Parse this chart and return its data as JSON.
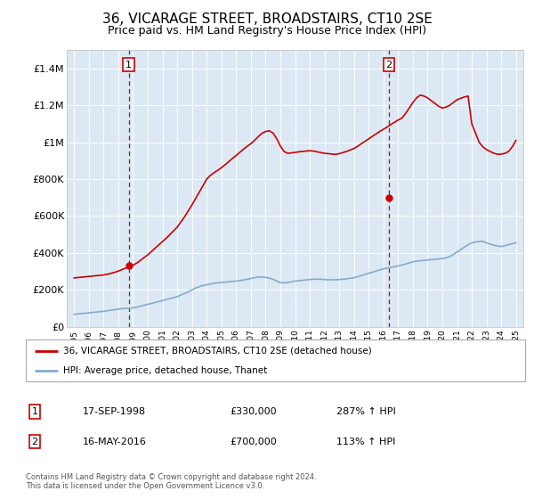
{
  "title": "36, VICARAGE STREET, BROADSTAIRS, CT10 2SE",
  "subtitle": "Price paid vs. HM Land Registry's House Price Index (HPI)",
  "title_fontsize": 11,
  "subtitle_fontsize": 9,
  "plot_bg_color": "#dce9f5",
  "legend_label_red": "36, VICARAGE STREET, BROADSTAIRS, CT10 2SE (detached house)",
  "legend_label_blue": "HPI: Average price, detached house, Thanet",
  "footer": "Contains HM Land Registry data © Crown copyright and database right 2024.\nThis data is licensed under the Open Government Licence v3.0.",
  "sale1_date": "17-SEP-1998",
  "sale1_price": 330000,
  "sale1_label": "287% ↑ HPI",
  "sale1_year": 1998.71,
  "sale2_date": "16-MAY-2016",
  "sale2_price": 700000,
  "sale2_label": "113% ↑ HPI",
  "sale2_year": 2016.37,
  "ylim": [
    0,
    1500000
  ],
  "yticks": [
    0,
    200000,
    400000,
    600000,
    800000,
    1000000,
    1200000,
    1400000
  ],
  "ytick_labels": [
    "£0",
    "£200K",
    "£400K",
    "£600K",
    "£800K",
    "£1M",
    "£1.2M",
    "£1.4M"
  ],
  "xlim_left": 1994.5,
  "xlim_right": 2025.5,
  "red_color": "#cc0000",
  "blue_color": "#88aacc",
  "years": [
    1995,
    1995.25,
    1995.5,
    1995.75,
    1996,
    1996.25,
    1996.5,
    1996.75,
    1997,
    1997.25,
    1997.5,
    1997.75,
    1998,
    1998.25,
    1998.5,
    1998.75,
    1999,
    1999.25,
    1999.5,
    1999.75,
    2000,
    2000.25,
    2000.5,
    2000.75,
    2001,
    2001.25,
    2001.5,
    2001.75,
    2002,
    2002.25,
    2002.5,
    2002.75,
    2003,
    2003.25,
    2003.5,
    2003.75,
    2004,
    2004.25,
    2004.5,
    2004.75,
    2005,
    2005.25,
    2005.5,
    2005.75,
    2006,
    2006.25,
    2006.5,
    2006.75,
    2007,
    2007.25,
    2007.5,
    2007.75,
    2008,
    2008.25,
    2008.5,
    2008.75,
    2009,
    2009.25,
    2009.5,
    2009.75,
    2010,
    2010.25,
    2010.5,
    2010.75,
    2011,
    2011.25,
    2011.5,
    2011.75,
    2012,
    2012.25,
    2012.5,
    2012.75,
    2013,
    2013.25,
    2013.5,
    2013.75,
    2014,
    2014.25,
    2014.5,
    2014.75,
    2015,
    2015.25,
    2015.5,
    2015.75,
    2016,
    2016.25,
    2016.5,
    2016.75,
    2017,
    2017.25,
    2017.5,
    2017.75,
    2018,
    2018.25,
    2018.5,
    2018.75,
    2019,
    2019.25,
    2019.5,
    2019.75,
    2020,
    2020.25,
    2020.5,
    2020.75,
    2021,
    2021.25,
    2021.5,
    2021.75,
    2022,
    2022.25,
    2022.5,
    2022.75,
    2023,
    2023.25,
    2023.5,
    2023.75,
    2024,
    2024.25,
    2024.5,
    2024.75,
    2025
  ],
  "blue_vals": [
    68000,
    70000,
    72000,
    74000,
    76000,
    78000,
    80000,
    82000,
    84000,
    87000,
    90000,
    93000,
    96000,
    99000,
    100000,
    101000,
    103000,
    107000,
    112000,
    117000,
    122000,
    127000,
    132000,
    137000,
    142000,
    148000,
    153000,
    158000,
    163000,
    172000,
    181000,
    190000,
    200000,
    210000,
    218000,
    224000,
    228000,
    232000,
    236000,
    238000,
    240000,
    242000,
    244000,
    246000,
    248000,
    250000,
    254000,
    258000,
    262000,
    266000,
    270000,
    270000,
    268000,
    264000,
    258000,
    248000,
    240000,
    238000,
    240000,
    244000,
    248000,
    250000,
    252000,
    254000,
    256000,
    258000,
    258000,
    258000,
    256000,
    255000,
    255000,
    255000,
    256000,
    258000,
    260000,
    263000,
    266000,
    272000,
    278000,
    284000,
    290000,
    296000,
    302000,
    308000,
    314000,
    318000,
    322000,
    326000,
    330000,
    335000,
    340000,
    346000,
    352000,
    356000,
    358000,
    360000,
    362000,
    364000,
    366000,
    368000,
    370000,
    374000,
    380000,
    392000,
    405000,
    418000,
    432000,
    445000,
    455000,
    460000,
    462000,
    463000,
    455000,
    448000,
    442000,
    438000,
    435000,
    440000,
    445000,
    450000,
    455000
  ],
  "red_vals": [
    265000,
    267000,
    269000,
    271000,
    273000,
    275000,
    277000,
    279000,
    281000,
    285000,
    290000,
    295000,
    302000,
    310000,
    318000,
    326000,
    334000,
    345000,
    360000,
    375000,
    390000,
    408000,
    426000,
    444000,
    462000,
    480000,
    500000,
    520000,
    540000,
    568000,
    596000,
    628000,
    660000,
    695000,
    730000,
    765000,
    800000,
    820000,
    835000,
    848000,
    862000,
    878000,
    895000,
    912000,
    928000,
    945000,
    962000,
    978000,
    992000,
    1010000,
    1030000,
    1048000,
    1058000,
    1062000,
    1050000,
    1020000,
    980000,
    950000,
    940000,
    942000,
    945000,
    948000,
    950000,
    952000,
    954000,
    952000,
    948000,
    944000,
    940000,
    938000,
    936000,
    934000,
    938000,
    944000,
    950000,
    958000,
    966000,
    978000,
    992000,
    1005000,
    1018000,
    1032000,
    1045000,
    1058000,
    1070000,
    1082000,
    1095000,
    1108000,
    1120000,
    1130000,
    1155000,
    1185000,
    1215000,
    1240000,
    1255000,
    1250000,
    1240000,
    1225000,
    1210000,
    1195000,
    1185000,
    1190000,
    1200000,
    1215000,
    1230000,
    1238000,
    1245000,
    1250000,
    1100000,
    1050000,
    1000000,
    975000,
    960000,
    950000,
    940000,
    935000,
    935000,
    940000,
    950000,
    975000,
    1010000
  ]
}
